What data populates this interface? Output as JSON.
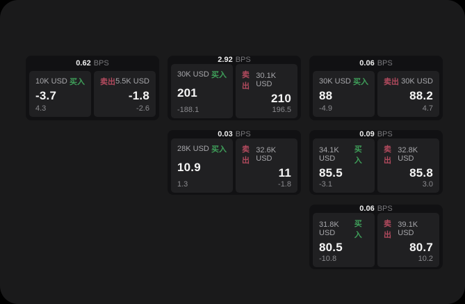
{
  "theme": {
    "page_bg": "#000000",
    "panel_bg": "#1a1a1b",
    "card_bg": "#111113",
    "tile_bg": "#202022",
    "buy_color": "#3f9f5a",
    "sell_color": "#b24a5e"
  },
  "labels": {
    "bps_unit": "BPS",
    "buy": "买入",
    "sell": "卖出"
  },
  "cards": [
    {
      "bps": "0.62",
      "buy": {
        "size": "10K USD",
        "price": "-3.7",
        "delta": "4.3"
      },
      "sell": {
        "size": "5.5K USD",
        "price": "-1.8",
        "delta": "-2.6"
      }
    },
    {
      "bps": "2.92",
      "buy": {
        "size": "30K USD",
        "price": "201",
        "delta": "-188.1"
      },
      "sell": {
        "size": "30.1K USD",
        "price": "210",
        "delta": "196.5"
      }
    },
    {
      "bps": "0.06",
      "buy": {
        "size": "30K USD",
        "price": "88",
        "delta": "-4.9"
      },
      "sell": {
        "size": "30K USD",
        "price": "88.2",
        "delta": "4.7"
      }
    },
    {
      "bps": "0.03",
      "buy": {
        "size": "28K USD",
        "price": "10.9",
        "delta": "1.3"
      },
      "sell": {
        "size": "32.6K USD",
        "price": "11",
        "delta": "-1.8"
      }
    },
    {
      "bps": "0.09",
      "buy": {
        "size": "34.1K USD",
        "price": "85.5",
        "delta": "-3.1"
      },
      "sell": {
        "size": "32.8K USD",
        "price": "85.8",
        "delta": "3.0"
      }
    },
    {
      "bps": "0.06",
      "buy": {
        "size": "31.8K USD",
        "price": "80.5",
        "delta": "-10.8"
      },
      "sell": {
        "size": "39.1K USD",
        "price": "80.7",
        "delta": "10.2"
      }
    }
  ]
}
